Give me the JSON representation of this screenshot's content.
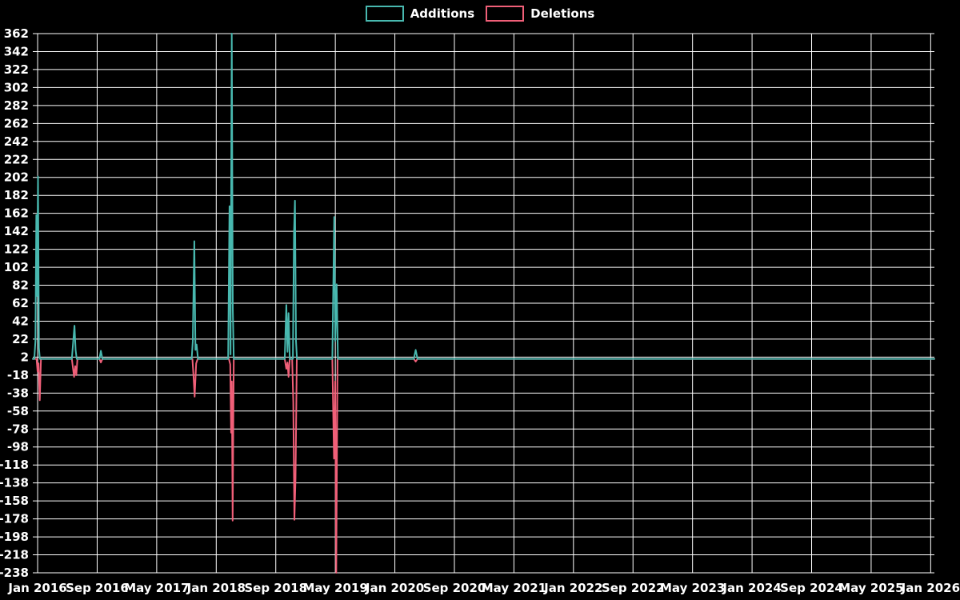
{
  "colors": {
    "background": "#000000",
    "grid": "#ffffff",
    "text": "#ffffff",
    "additions": "#48b8af",
    "deletions": "#f05f78"
  },
  "legend": {
    "items": [
      {
        "label": "Additions",
        "color": "#48b8af"
      },
      {
        "label": "Deletions",
        "color": "#f05f78"
      }
    ]
  },
  "chart_data": {
    "type": "line",
    "title": "",
    "xlabel": "",
    "ylabel": "",
    "legend_position": "top-center",
    "grid": true,
    "x_axis": {
      "tick_labels": [
        "Jan 2016",
        "Sep 2016",
        "May 2017",
        "Jan 2018",
        "Sep 2018",
        "May 2019",
        "Jan 2020",
        "Sep 2020",
        "May 2021",
        "Jan 2022",
        "Sep 2022",
        "May 2023",
        "Jan 2024",
        "Sep 2024",
        "May 2025",
        "Jan 2026"
      ],
      "tick_months": [
        0,
        8,
        16,
        24,
        32,
        40,
        48,
        56,
        64,
        72,
        80,
        88,
        96,
        104,
        112,
        120
      ],
      "range_months": [
        -0.65,
        120.5
      ]
    },
    "y_axis": {
      "tick_labels": [
        362,
        342,
        322,
        302,
        282,
        262,
        242,
        222,
        202,
        182,
        162,
        142,
        122,
        102,
        82,
        62,
        42,
        22,
        2,
        -18,
        -38,
        -58,
        -78,
        -98,
        -118,
        -138,
        -158,
        -178,
        -198,
        -218,
        -238
      ],
      "range": [
        -238,
        362
      ]
    },
    "spike_summary": [
      {
        "date": "Jan 2016",
        "additions": 203,
        "deletions": -46
      },
      {
        "date": "Jun 2016",
        "additions": 37,
        "deletions": -20
      },
      {
        "date": "Sep 2016",
        "additions": 9,
        "deletions": -4
      },
      {
        "date": "Dec 2017",
        "additions": 131,
        "deletions": -42
      },
      {
        "date": "Feb 2018",
        "additions": 170,
        "deletions": -82
      },
      {
        "date": "Mar 2018",
        "additions": 362,
        "deletions": -180
      },
      {
        "date": "Sep 2018",
        "additions": 60,
        "deletions": -20
      },
      {
        "date": "Oct 2018",
        "additions": 176,
        "deletions": -179
      },
      {
        "date": "May 2019",
        "additions": 158,
        "deletions": -238
      },
      {
        "date": "Jan 2020",
        "additions": 10,
        "deletions": -3
      }
    ],
    "series": [
      {
        "name": "Additions",
        "color": "#48b8af",
        "points": [
          [
            -0.65,
            0
          ],
          [
            -0.45,
            0
          ],
          [
            -0.3,
            20
          ],
          [
            -0.18,
            160
          ],
          [
            -0.08,
            70
          ],
          [
            0.05,
            203
          ],
          [
            0.18,
            12
          ],
          [
            0.3,
            0
          ],
          [
            4.6,
            0
          ],
          [
            4.95,
            37
          ],
          [
            5.1,
            10
          ],
          [
            5.25,
            0
          ],
          [
            8.3,
            0
          ],
          [
            8.5,
            9
          ],
          [
            8.7,
            0
          ],
          [
            20.7,
            0
          ],
          [
            20.85,
            20
          ],
          [
            20.95,
            75
          ],
          [
            21.05,
            131
          ],
          [
            21.2,
            10
          ],
          [
            21.35,
            16
          ],
          [
            21.55,
            0
          ],
          [
            25.6,
            0
          ],
          [
            25.78,
            170
          ],
          [
            25.92,
            5
          ],
          [
            26.08,
            362
          ],
          [
            26.22,
            55
          ],
          [
            26.35,
            0
          ],
          [
            33.2,
            0
          ],
          [
            33.42,
            60
          ],
          [
            33.58,
            8
          ],
          [
            33.72,
            51
          ],
          [
            33.88,
            0
          ],
          [
            34.3,
            0
          ],
          [
            34.45,
            140
          ],
          [
            34.58,
            176
          ],
          [
            34.72,
            20
          ],
          [
            34.85,
            0
          ],
          [
            39.6,
            0
          ],
          [
            39.85,
            158
          ],
          [
            40.0,
            20
          ],
          [
            40.18,
            83
          ],
          [
            40.35,
            0
          ],
          [
            50.55,
            0
          ],
          [
            50.8,
            10
          ],
          [
            51.05,
            0
          ],
          [
            120.5,
            0
          ]
        ]
      },
      {
        "name": "Deletions",
        "color": "#f05f78",
        "points": [
          [
            -0.65,
            0
          ],
          [
            -0.15,
            0
          ],
          [
            0.0,
            -14
          ],
          [
            0.12,
            -5
          ],
          [
            0.28,
            -46
          ],
          [
            0.45,
            0
          ],
          [
            4.6,
            0
          ],
          [
            4.9,
            -20
          ],
          [
            5.05,
            -8
          ],
          [
            5.2,
            -18
          ],
          [
            5.35,
            0
          ],
          [
            8.3,
            0
          ],
          [
            8.5,
            -4
          ],
          [
            8.7,
            0
          ],
          [
            20.8,
            0
          ],
          [
            20.95,
            -19
          ],
          [
            21.1,
            -42
          ],
          [
            21.3,
            -5
          ],
          [
            21.5,
            0
          ],
          [
            25.7,
            0
          ],
          [
            25.88,
            -6
          ],
          [
            26.0,
            -82
          ],
          [
            26.1,
            -25
          ],
          [
            26.2,
            -180
          ],
          [
            26.35,
            0
          ],
          [
            33.2,
            0
          ],
          [
            33.42,
            -11
          ],
          [
            33.58,
            -4
          ],
          [
            33.72,
            -20
          ],
          [
            33.88,
            0
          ],
          [
            34.2,
            0
          ],
          [
            34.35,
            -48
          ],
          [
            34.5,
            -179
          ],
          [
            34.65,
            -133
          ],
          [
            34.82,
            0
          ],
          [
            39.6,
            0
          ],
          [
            39.82,
            -111
          ],
          [
            39.98,
            -25
          ],
          [
            40.12,
            -238
          ],
          [
            40.3,
            0
          ],
          [
            50.55,
            0
          ],
          [
            50.8,
            -3
          ],
          [
            51.05,
            0
          ],
          [
            120.5,
            0
          ]
        ]
      }
    ]
  }
}
